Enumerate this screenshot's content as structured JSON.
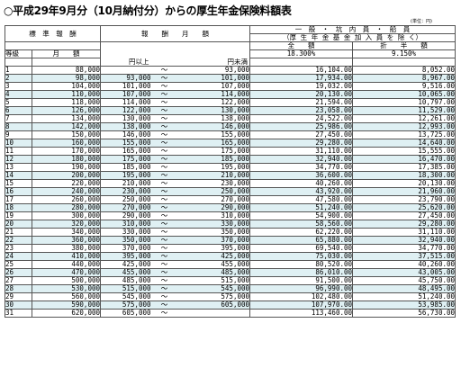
{
  "title": "○平成29年9月分（10月納付分）からの厚生年金保険料額表",
  "unit_note": "(単位：円)",
  "headers": {
    "standard_remuneration": "標　準　報　酬",
    "remuneration_monthly": "報　　酬　　月　　額",
    "general_line1": "一　般　・　坑　内　員　・　船　員",
    "general_line2": "（厚 生 年 金 基 金 加 入 員 を 除 く）",
    "full_amount": "全　　額",
    "half_amount": "折　　半　　額",
    "grade": "等級",
    "monthly_amount": "月　　額",
    "rate_full": "18.300%",
    "rate_half": "9.150%",
    "from_label": "円以上",
    "to_label": "円未満"
  },
  "rows": [
    {
      "grade": "1",
      "monthly": "88,000",
      "from": "",
      "to": "93,000",
      "full": "16,104.00",
      "half": "8,052.00"
    },
    {
      "grade": "2",
      "monthly": "98,000",
      "from": "93,000",
      "to": "101,000",
      "full": "17,934.00",
      "half": "8,967.00"
    },
    {
      "grade": "3",
      "monthly": "104,000",
      "from": "101,000",
      "to": "107,000",
      "full": "19,032.00",
      "half": "9,516.00"
    },
    {
      "grade": "4",
      "monthly": "110,000",
      "from": "107,000",
      "to": "114,000",
      "full": "20,130.00",
      "half": "10,065.00"
    },
    {
      "grade": "5",
      "monthly": "118,000",
      "from": "114,000",
      "to": "122,000",
      "full": "21,594.00",
      "half": "10,797.00"
    },
    {
      "grade": "6",
      "monthly": "126,000",
      "from": "122,000",
      "to": "130,000",
      "full": "23,058.00",
      "half": "11,529.00"
    },
    {
      "grade": "7",
      "monthly": "134,000",
      "from": "130,000",
      "to": "138,000",
      "full": "24,522.00",
      "half": "12,261.00"
    },
    {
      "grade": "8",
      "monthly": "142,000",
      "from": "138,000",
      "to": "146,000",
      "full": "25,986.00",
      "half": "12,993.00"
    },
    {
      "grade": "9",
      "monthly": "150,000",
      "from": "146,000",
      "to": "155,000",
      "full": "27,450.00",
      "half": "13,725.00"
    },
    {
      "grade": "10",
      "monthly": "160,000",
      "from": "155,000",
      "to": "165,000",
      "full": "29,280.00",
      "half": "14,640.00"
    },
    {
      "grade": "11",
      "monthly": "170,000",
      "from": "165,000",
      "to": "175,000",
      "full": "31,110.00",
      "half": "15,555.00"
    },
    {
      "grade": "12",
      "monthly": "180,000",
      "from": "175,000",
      "to": "185,000",
      "full": "32,940.00",
      "half": "16,470.00"
    },
    {
      "grade": "13",
      "monthly": "190,000",
      "from": "185,000",
      "to": "195,000",
      "full": "34,770.00",
      "half": "17,385.00"
    },
    {
      "grade": "14",
      "monthly": "200,000",
      "from": "195,000",
      "to": "210,000",
      "full": "36,600.00",
      "half": "18,300.00"
    },
    {
      "grade": "15",
      "monthly": "220,000",
      "from": "210,000",
      "to": "230,000",
      "full": "40,260.00",
      "half": "20,130.00"
    },
    {
      "grade": "16",
      "monthly": "240,000",
      "from": "230,000",
      "to": "250,000",
      "full": "43,920.00",
      "half": "21,960.00"
    },
    {
      "grade": "17",
      "monthly": "260,000",
      "from": "250,000",
      "to": "270,000",
      "full": "47,580.00",
      "half": "23,790.00"
    },
    {
      "grade": "18",
      "monthly": "280,000",
      "from": "270,000",
      "to": "290,000",
      "full": "51,240.00",
      "half": "25,620.00"
    },
    {
      "grade": "19",
      "monthly": "300,000",
      "from": "290,000",
      "to": "310,000",
      "full": "54,900.00",
      "half": "27,450.00"
    },
    {
      "grade": "20",
      "monthly": "320,000",
      "from": "310,000",
      "to": "330,000",
      "full": "58,560.00",
      "half": "29,280.00"
    },
    {
      "grade": "21",
      "monthly": "340,000",
      "from": "330,000",
      "to": "350,000",
      "full": "62,220.00",
      "half": "31,110.00"
    },
    {
      "grade": "22",
      "monthly": "360,000",
      "from": "350,000",
      "to": "370,000",
      "full": "65,880.00",
      "half": "32,940.00"
    },
    {
      "grade": "23",
      "monthly": "380,000",
      "from": "370,000",
      "to": "395,000",
      "full": "69,540.00",
      "half": "34,770.00"
    },
    {
      "grade": "24",
      "monthly": "410,000",
      "from": "395,000",
      "to": "425,000",
      "full": "75,030.00",
      "half": "37,515.00"
    },
    {
      "grade": "25",
      "monthly": "440,000",
      "from": "425,000",
      "to": "455,000",
      "full": "80,520.00",
      "half": "40,260.00"
    },
    {
      "grade": "26",
      "monthly": "470,000",
      "from": "455,000",
      "to": "485,000",
      "full": "86,010.00",
      "half": "43,005.00"
    },
    {
      "grade": "27",
      "monthly": "500,000",
      "from": "485,000",
      "to": "515,000",
      "full": "91,500.00",
      "half": "45,750.00"
    },
    {
      "grade": "28",
      "monthly": "530,000",
      "from": "515,000",
      "to": "545,000",
      "full": "96,990.00",
      "half": "48,495.00"
    },
    {
      "grade": "29",
      "monthly": "560,000",
      "from": "545,000",
      "to": "575,000",
      "full": "102,480.00",
      "half": "51,240.00"
    },
    {
      "grade": "30",
      "monthly": "590,000",
      "from": "575,000",
      "to": "605,000",
      "full": "107,970.00",
      "half": "53,985.00"
    },
    {
      "grade": "31",
      "monthly": "620,000",
      "from": "605,000",
      "to": "",
      "full": "113,460.00",
      "half": "56,730.00"
    }
  ]
}
